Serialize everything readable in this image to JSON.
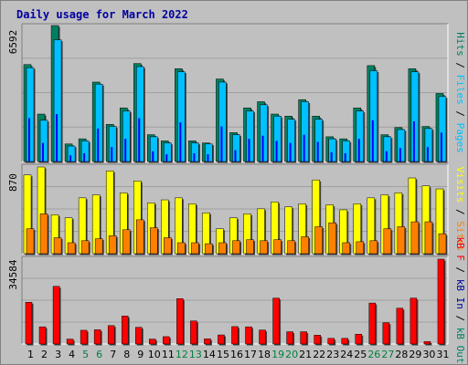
{
  "chart_data": {
    "type": "bar",
    "title": "Daily usage for March 2022",
    "colors": {
      "background": "#c0c0c0",
      "plot_background": "#c0c0c0",
      "title": "#0000a0",
      "axis_text": "#000000",
      "weekend_text": "#008040",
      "grid": "#a0a0a0",
      "hits": "#008060",
      "files": "#00c0ff",
      "pages": "#0000ff",
      "visits": "#ffff00",
      "sites": "#ff8000",
      "kbin": "#00a060",
      "kbout": "#0000a0",
      "kbf": "#ff0000",
      "kbytes": "#ff0000"
    },
    "days": [
      "1",
      "2",
      "3",
      "4",
      "5",
      "6",
      "7",
      "8",
      "9",
      "10",
      "11",
      "12",
      "13",
      "14",
      "15",
      "16",
      "17",
      "18",
      "19",
      "20",
      "21",
      "22",
      "23",
      "24",
      "25",
      "26",
      "27",
      "28",
      "29",
      "30",
      "31"
    ],
    "weekend_days": [
      5,
      6,
      12,
      13,
      19,
      20,
      26,
      27
    ],
    "panels": [
      {
        "max_label": "6592",
        "ymax": 6592,
        "legend": [
          {
            "text": "Hits",
            "color": "#008060"
          },
          {
            "text": " / ",
            "color": "#000000"
          },
          {
            "text": "Files",
            "color": "#00c0ff"
          },
          {
            "text": " / ",
            "color": "#000000"
          },
          {
            "text": "Pages",
            "color": "#00c0ff"
          }
        ],
        "series": [
          {
            "name": "Hits",
            "values": [
              4700,
              2300,
              6592,
              850,
              1100,
              3850,
              1800,
              2600,
              4750,
              1300,
              1000,
              4500,
              1000,
              900,
              4000,
              1400,
              2600,
              2900,
              2300,
              2200,
              3000,
              2200,
              1200,
              1100,
              2600,
              4650,
              1300,
              1650,
              4500,
              1700,
              3300
            ]
          },
          {
            "name": "Files",
            "values": [
              4550,
              2000,
              5900,
              750,
              1000,
              3750,
              1700,
              2450,
              4600,
              1200,
              900,
              4350,
              900,
              850,
              3850,
              1300,
              2450,
              2750,
              2200,
              2050,
              2900,
              2050,
              1100,
              1000,
              2450,
              4400,
              1200,
              1550,
              4350,
              1600,
              3150
            ]
          },
          {
            "name": "Pages",
            "values": [
              2100,
              900,
              2300,
              300,
              400,
              1600,
              700,
              1100,
              2100,
              500,
              350,
              1900,
              400,
              350,
              1700,
              550,
              1100,
              1250,
              1000,
              900,
              1300,
              950,
              450,
              400,
              1100,
              2000,
              500,
              650,
              1950,
              700,
              1400
            ]
          }
        ]
      },
      {
        "max_label": "870",
        "ymax": 870,
        "legend": [
          {
            "text": "Visits",
            "color": "#ffff00"
          },
          {
            "text": " / ",
            "color": "#000000"
          },
          {
            "text": "Sites",
            "color": "#ff8000"
          }
        ],
        "series": [
          {
            "name": "Visits",
            "values": [
              790,
              870,
              390,
              360,
              560,
              590,
              830,
              610,
              730,
              510,
              540,
              560,
              500,
              410,
              250,
              360,
              400,
              450,
              520,
              470,
              500,
              740,
              490,
              440,
              500,
              560,
              590,
              610,
              760,
              680,
              650
            ]
          },
          {
            "name": "Sites",
            "values": [
              250,
              400,
              160,
              110,
              130,
              150,
              180,
              240,
              340,
              260,
              160,
              110,
              110,
              100,
              110,
              130,
              140,
              130,
              140,
              130,
              170,
              270,
              310,
              110,
              120,
              130,
              250,
              270,
              320,
              320,
              200
            ]
          }
        ]
      },
      {
        "max_label": "34584",
        "ymax": 34584,
        "legend": [
          {
            "text": "kB F",
            "color": "#ff0000"
          },
          {
            "text": " / ",
            "color": "#000000"
          },
          {
            "text": "kB In",
            "color": "#0000a0"
          },
          {
            "text": " / ",
            "color": "#000000"
          },
          {
            "text": "kB Out",
            "color": "#008060"
          }
        ],
        "series": [
          {
            "name": "kB F",
            "values": [
              17000,
              7000,
              23500,
              2000,
              5600,
              5800,
              7500,
              11400,
              6800,
              2000,
              3000,
              18500,
              9400,
              2100,
              3700,
              7100,
              7000,
              5700,
              18700,
              5000,
              5000,
              3600,
              2300,
              2300,
              4000,
              16700,
              8700,
              14600,
              18700,
              1000,
              34584
            ]
          }
        ]
      }
    ]
  }
}
